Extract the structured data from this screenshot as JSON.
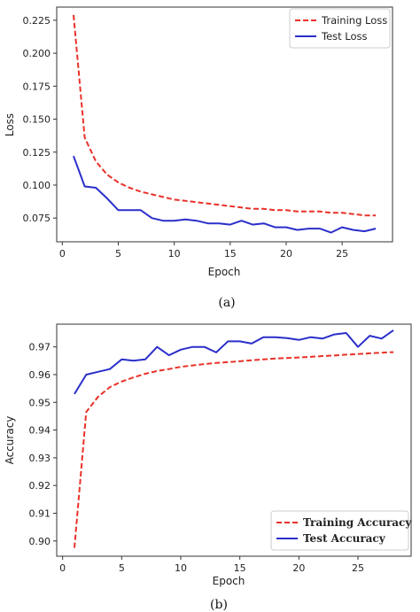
{
  "chart_data": [
    {
      "type": "line",
      "caption": "(a)",
      "xlabel": "Epoch",
      "ylabel": "Loss",
      "xlim": [
        -0.5,
        29.5
      ],
      "ylim": [
        0.057,
        0.235
      ],
      "xticks": [
        0,
        5,
        10,
        15,
        20,
        25
      ],
      "yticks": [
        0.075,
        0.1,
        0.125,
        0.15,
        0.175,
        0.2,
        0.225
      ],
      "ytick_labels": [
        "0.075",
        "0.100",
        "0.125",
        "0.150",
        "0.175",
        "0.200",
        "0.225"
      ],
      "legend_position": "top-right",
      "x": [
        1,
        2,
        3,
        4,
        5,
        6,
        7,
        8,
        9,
        10,
        11,
        12,
        13,
        14,
        15,
        16,
        17,
        18,
        19,
        20,
        21,
        22,
        23,
        24,
        25,
        26,
        27,
        28
      ],
      "series": [
        {
          "name": "Training Loss",
          "color": "#e8312a",
          "style": "dashed",
          "values": [
            0.229,
            0.136,
            0.118,
            0.108,
            0.102,
            0.098,
            0.095,
            0.093,
            0.091,
            0.089,
            0.088,
            0.087,
            0.086,
            0.085,
            0.084,
            0.083,
            0.082,
            0.082,
            0.081,
            0.081,
            0.08,
            0.08,
            0.08,
            0.079,
            0.079,
            0.078,
            0.077,
            0.077
          ]
        },
        {
          "name": "Test Loss",
          "color": "#2b2fc9",
          "style": "solid",
          "values": [
            0.122,
            0.099,
            0.098,
            0.09,
            0.081,
            0.081,
            0.081,
            0.075,
            0.073,
            0.073,
            0.074,
            0.073,
            0.071,
            0.071,
            0.07,
            0.073,
            0.07,
            0.071,
            0.068,
            0.068,
            0.066,
            0.067,
            0.067,
            0.064,
            0.068,
            0.066,
            0.065,
            0.067
          ]
        }
      ]
    },
    {
      "type": "line",
      "caption": "(b)",
      "xlabel": "Epoch",
      "ylabel": "Accuracy",
      "xlim": [
        -0.5,
        29.5
      ],
      "ylim": [
        0.8945,
        0.9782
      ],
      "xticks": [
        0,
        5,
        10,
        15,
        20,
        25
      ],
      "yticks": [
        0.9,
        0.91,
        0.92,
        0.93,
        0.94,
        0.95,
        0.96,
        0.97
      ],
      "ytick_labels": [
        "0.90",
        "0.91",
        "0.92",
        "0.93",
        "0.94",
        "0.95",
        "0.96",
        "0.97"
      ],
      "legend_position": "bottom-right",
      "x": [
        1,
        2,
        3,
        4,
        5,
        6,
        7,
        8,
        9,
        10,
        11,
        12,
        13,
        14,
        15,
        16,
        17,
        18,
        19,
        20,
        21,
        22,
        23,
        24,
        25,
        26,
        27,
        28
      ],
      "series": [
        {
          "name": "Training Accuracy",
          "color": "#e8312a",
          "style": "dashed",
          "values": [
            0.8975,
            0.9465,
            0.952,
            0.9555,
            0.9575,
            0.959,
            0.9603,
            0.9613,
            0.962,
            0.9628,
            0.9633,
            0.9638,
            0.9642,
            0.9645,
            0.9648,
            0.9652,
            0.9655,
            0.9658,
            0.966,
            0.9662,
            0.9664,
            0.9667,
            0.9669,
            0.9672,
            0.9674,
            0.9677,
            0.9679,
            0.9681
          ]
        },
        {
          "name": "Test Accuracy",
          "color": "#2b2fc9",
          "style": "solid",
          "values": [
            0.953,
            0.96,
            0.961,
            0.962,
            0.9655,
            0.965,
            0.9655,
            0.97,
            0.967,
            0.969,
            0.97,
            0.97,
            0.968,
            0.972,
            0.972,
            0.9712,
            0.9735,
            0.9735,
            0.9732,
            0.9725,
            0.9735,
            0.973,
            0.9745,
            0.975,
            0.97,
            0.974,
            0.973,
            0.976
          ]
        }
      ]
    }
  ]
}
